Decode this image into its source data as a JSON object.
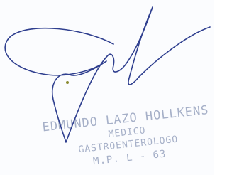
{
  "stamp": {
    "name": "EDMUNDO LAZO HOLLKENS",
    "title": "MEDICO",
    "specialty": "GASTROENTEROLOGO",
    "registration": "M.P. L - 63"
  }
}
